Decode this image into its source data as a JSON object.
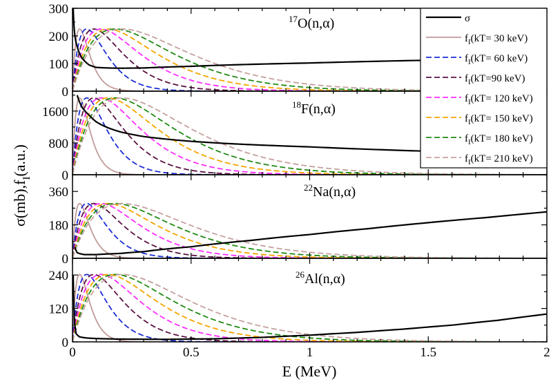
{
  "chart_data": {
    "type": "line",
    "xlabel": "E (MeV)",
    "ylabel": "σ(mb),f",
    "ylabel_sub": "I",
    "ylabel_suffix": "(a.u.)",
    "xlim": [
      0,
      2
    ],
    "x_ticks": [
      0,
      0.5,
      1,
      1.5,
      2
    ],
    "x_tick_labels": [
      "0",
      "0.5",
      "1",
      "1.5",
      "2"
    ],
    "x_minor_step": 0.1,
    "grid": false,
    "legend": {
      "placement": "top-right",
      "entries": [
        {
          "label": "σ",
          "color": "#000000",
          "dash": "solid"
        },
        {
          "prefix": "f",
          "sub": "I",
          "label": "(kT= 30 keV)",
          "kT": 0.03,
          "color": "#c09a98",
          "dash": "solid"
        },
        {
          "prefix": "f",
          "sub": "I",
          "label": "(kT= 60 keV)",
          "kT": 0.06,
          "color": "#1a2cd6",
          "dash": "dashed"
        },
        {
          "prefix": "f",
          "sub": "I",
          "label": "(kT=90 keV)",
          "kT": 0.09,
          "color": "#5a1040",
          "dash": "dashed"
        },
        {
          "prefix": "f",
          "sub": "I",
          "label": "(kT= 120 keV)",
          "kT": 0.12,
          "color": "#ff2cff",
          "dash": "dashed"
        },
        {
          "prefix": "f",
          "sub": "I",
          "label": "(kT= 150 keV)",
          "kT": 0.15,
          "color": "#f5a400",
          "dash": "dashed"
        },
        {
          "prefix": "f",
          "sub": "I",
          "label": "(kT= 180 keV)",
          "kT": 0.18,
          "color": "#1e8a10",
          "dash": "dashed"
        },
        {
          "prefix": "f",
          "sub": "I",
          "label": "(kT= 210 keV)",
          "kT": 0.21,
          "color": "#c4a09e",
          "dash": "dashed"
        }
      ]
    },
    "panels": [
      {
        "mass": "17",
        "reaction": "O(n,α)",
        "ylim": [
          0,
          300
        ],
        "y_ticks": [
          0,
          100,
          200,
          300
        ],
        "y_tick_labels": [
          "0",
          "100",
          "200",
          "300"
        ],
        "y_minor_step": 50,
        "f_peak": 225,
        "sigma": {
          "x": [
            0.003,
            0.01,
            0.02,
            0.04,
            0.07,
            0.1,
            0.15,
            0.2,
            0.3,
            0.5,
            1.0,
            1.5,
            2.0
          ],
          "y": [
            300,
            200,
            160,
            120,
            95,
            86,
            84,
            83,
            84,
            90,
            102,
            112,
            122
          ]
        }
      },
      {
        "mass": "18",
        "reaction": "F(n,α)",
        "ylim": [
          0,
          2100
        ],
        "y_ticks": [
          0,
          800,
          1600
        ],
        "y_tick_labels": [
          "0",
          "800",
          "1600"
        ],
        "y_minor_step": 400,
        "f_peak": 1930,
        "sigma": {
          "x": [
            0.02,
            0.04,
            0.07,
            0.1,
            0.15,
            0.2,
            0.3,
            0.5,
            0.7,
            1.0,
            1.5,
            2.0
          ],
          "y": [
            2000,
            1700,
            1500,
            1330,
            1180,
            1080,
            960,
            840,
            770,
            700,
            590,
            460
          ]
        }
      },
      {
        "mass": "22",
        "reaction": "Na(n,α)",
        "ylim": [
          0,
          450
        ],
        "y_ticks": [
          0,
          180,
          360
        ],
        "y_tick_labels": [
          "0",
          "180",
          "360"
        ],
        "y_minor_step": 90,
        "f_peak": 295,
        "sigma": {
          "x": [
            0.01,
            0.02,
            0.05,
            0.1,
            0.2,
            0.3,
            0.5,
            0.75,
            1.0,
            1.25,
            1.5,
            1.75,
            2.0
          ],
          "y": [
            60,
            30,
            20,
            20,
            26,
            36,
            62,
            96,
            128,
            160,
            192,
            220,
            250
          ]
        }
      },
      {
        "mass": "26",
        "reaction": "Al(n,α)",
        "ylim": [
          0,
          300
        ],
        "y_ticks": [
          0,
          120,
          240
        ],
        "y_tick_labels": [
          "0",
          "120",
          "240"
        ],
        "y_minor_step": 60,
        "f_peak": 242,
        "sigma": {
          "x": [
            0.003,
            0.008,
            0.015,
            0.03,
            0.06,
            0.1,
            0.2,
            0.4,
            0.6,
            0.8,
            1.0,
            1.2,
            1.4,
            1.6,
            1.8,
            2.0
          ],
          "y": [
            240,
            80,
            30,
            18,
            14,
            12,
            10,
            9,
            11,
            16,
            24,
            34,
            46,
            60,
            78,
            100
          ]
        }
      }
    ]
  }
}
